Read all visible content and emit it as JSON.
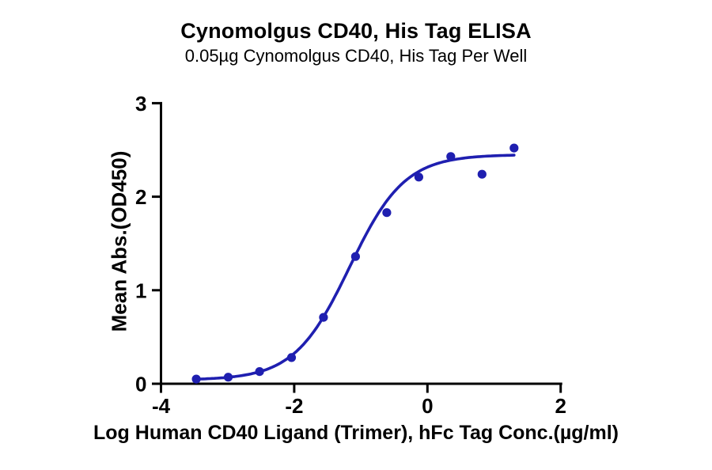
{
  "page": {
    "background_color": "#ffffff"
  },
  "chart_data": {
    "type": "scatter",
    "title": "Cynomolgus CD40, His Tag ELISA",
    "subtitle": "0.05µg Cynomolgus CD40, His Tag Per Well",
    "xlabel": "Log Human CD40 Ligand (Trimer), hFc Tag Conc.(µg/ml)",
    "ylabel": "Mean Abs.(OD450)",
    "xlim": [
      -4,
      2
    ],
    "ylim": [
      0,
      3
    ],
    "xticks": [
      -4,
      -2,
      0,
      2
    ],
    "yticks": [
      0,
      1,
      2,
      3
    ],
    "grid": false,
    "legend": "none",
    "series_color": "#1f1fb0",
    "axis_color": "#000000",
    "points": [
      {
        "x": -3.47,
        "y": 0.05
      },
      {
        "x": -2.99,
        "y": 0.07
      },
      {
        "x": -2.52,
        "y": 0.13
      },
      {
        "x": -2.04,
        "y": 0.28
      },
      {
        "x": -1.56,
        "y": 0.71
      },
      {
        "x": -1.08,
        "y": 1.36
      },
      {
        "x": -0.61,
        "y": 1.83
      },
      {
        "x": -0.13,
        "y": 2.21
      },
      {
        "x": 0.35,
        "y": 2.43
      },
      {
        "x": 0.82,
        "y": 2.24
      },
      {
        "x": 1.3,
        "y": 2.52
      }
    ],
    "fit_curve": {
      "model": "4PL",
      "bottom": 0.04,
      "top": 2.45,
      "logEC50": -1.17,
      "hillslope": 1.05,
      "x_start": -3.47,
      "x_end": 1.3
    }
  }
}
